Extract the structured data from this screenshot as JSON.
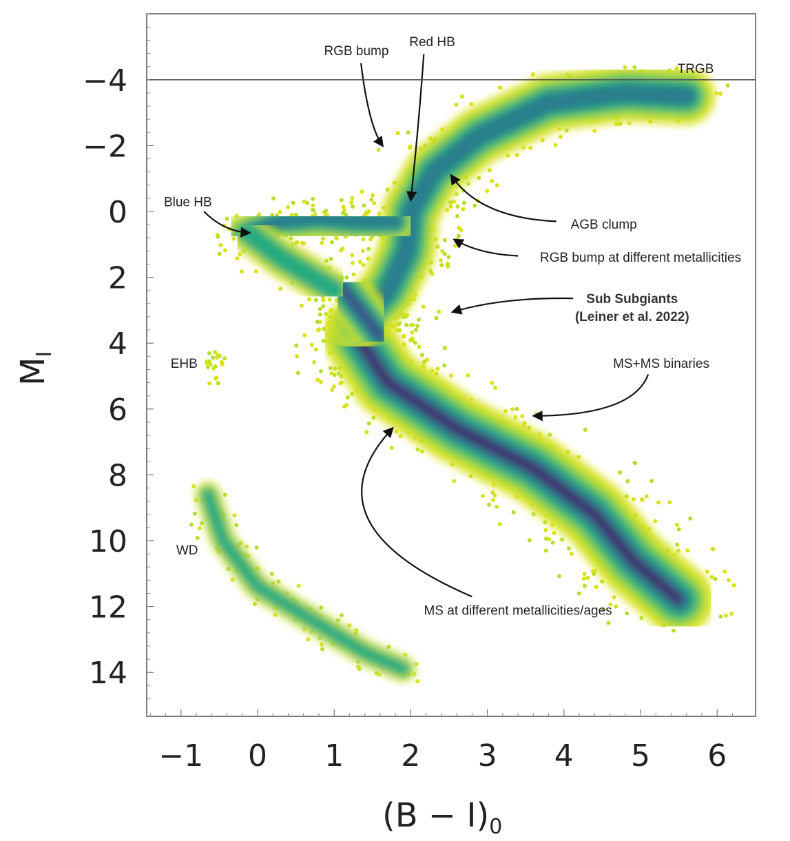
{
  "chart_data": {
    "type": "heatmap",
    "title": "",
    "xlabel": "(B − I)",
    "xlabel_sub": "0",
    "ylabel": "M",
    "ylabel_sub": "I",
    "xlim": [
      -1.45,
      6.5
    ],
    "ylim": [
      15.2,
      -6.1
    ],
    "y_inverted": true,
    "xticks": [
      -1,
      0,
      1,
      2,
      3,
      4,
      5,
      6
    ],
    "xtick_labels": [
      "−1",
      "0",
      "1",
      "2",
      "3",
      "4",
      "5",
      "6"
    ],
    "yticks": [
      -4,
      -2,
      0,
      2,
      4,
      6,
      8,
      10,
      12,
      14
    ],
    "ytick_labels": [
      "−4",
      "−2",
      "0",
      "2",
      "4",
      "6",
      "8",
      "10",
      "12",
      "14"
    ],
    "grid": false,
    "colormap": [
      "#d8e219",
      "#7ad151",
      "#22a884",
      "#2a788e",
      "#414487",
      "#440154"
    ],
    "reference_lines": [
      {
        "y": -4,
        "label": "TRGB",
        "label_x": 5.72,
        "label_y": -4.33
      }
    ],
    "branches": [
      {
        "name": "main-sequence",
        "width": 0.55,
        "density": 1.0,
        "points": [
          [
            1.3,
            3.8
          ],
          [
            1.7,
            5.2
          ],
          [
            2.6,
            6.6
          ],
          [
            3.6,
            7.8
          ],
          [
            4.4,
            9.2
          ],
          [
            4.9,
            10.6
          ],
          [
            5.5,
            11.8
          ]
        ]
      },
      {
        "name": "red-giant-branch",
        "width": 0.45,
        "density": 0.6,
        "points": [
          [
            1.3,
            3.4
          ],
          [
            1.7,
            2.4
          ],
          [
            1.95,
            1.2
          ],
          [
            2.0,
            0.0
          ],
          [
            2.3,
            -1.2
          ],
          [
            2.9,
            -2.3
          ],
          [
            3.8,
            -3.3
          ],
          [
            4.8,
            -3.6
          ],
          [
            5.6,
            -3.5
          ]
        ]
      },
      {
        "name": "subgiant-branch",
        "width": 0.4,
        "density": 0.7,
        "points": [
          [
            1.1,
            2.3
          ],
          [
            1.4,
            3.2
          ],
          [
            1.6,
            3.8
          ]
        ]
      },
      {
        "name": "horizontal-branch",
        "width": 0.35,
        "density": 0.45,
        "points": [
          [
            -0.15,
            0.7
          ],
          [
            0.3,
            0.3
          ],
          [
            0.8,
            0.2
          ],
          [
            1.3,
            0.3
          ],
          [
            1.8,
            0.3
          ]
        ]
      },
      {
        "name": "blue-hb-tail",
        "width": 0.3,
        "density": 0.35,
        "points": [
          [
            -0.15,
            0.6
          ],
          [
            0.3,
            1.4
          ],
          [
            1.0,
            2.4
          ]
        ]
      },
      {
        "name": "white-dwarfs",
        "width": 0.2,
        "density": 0.4,
        "points": [
          [
            -0.65,
            8.6
          ],
          [
            -0.45,
            10.0
          ],
          [
            0.0,
            11.4
          ],
          [
            0.7,
            12.4
          ],
          [
            1.4,
            13.4
          ],
          [
            1.9,
            13.9
          ]
        ]
      },
      {
        "name": "extreme-hb",
        "width": 0.08,
        "density": 0.3,
        "points": [
          [
            -0.55,
            4.2
          ],
          [
            -0.55,
            5.3
          ]
        ]
      }
    ],
    "annotations": [
      {
        "text": "RGB bump",
        "x": 1.29,
        "y": -4.9,
        "arrow_from": [
          1.35,
          -4.5
        ],
        "arrow_ctrl": [
          1.45,
          -2.6
        ],
        "arrow_to": [
          1.63,
          -2.0
        ]
      },
      {
        "text": "Red HB",
        "x": 2.28,
        "y": -5.17,
        "arrow_from": [
          2.17,
          -4.78
        ],
        "arrow_ctrl": [
          2.1,
          -2.5
        ],
        "arrow_to": [
          2.0,
          -0.35
        ]
      },
      {
        "text": "Blue HB",
        "x": -0.91,
        "y": -0.3,
        "arrow_from": [
          -0.7,
          0.0
        ],
        "arrow_ctrl": [
          -0.45,
          0.6
        ],
        "arrow_to": [
          -0.11,
          0.65
        ]
      },
      {
        "text": "AGB clump",
        "x": 4.52,
        "y": 0.38,
        "arrow_from": [
          3.9,
          0.3
        ],
        "arrow_ctrl": [
          2.9,
          0.2
        ],
        "arrow_to": [
          2.53,
          -1.09
        ]
      },
      {
        "text": "RGB bump at different metallicities",
        "x": 5.0,
        "y": 1.38,
        "arrow_from": [
          3.4,
          1.35
        ],
        "arrow_ctrl": [
          2.9,
          1.3
        ],
        "arrow_to": [
          2.57,
          0.86
        ]
      },
      {
        "text": "Sub Subgiants",
        "text2": "(Leiner et al. 2022)",
        "bold": true,
        "x": 4.89,
        "y": 2.64,
        "arrow_from": [
          4.12,
          2.64
        ],
        "arrow_ctrl": [
          3.2,
          2.6
        ],
        "arrow_to": [
          2.55,
          3.05
        ]
      },
      {
        "text": "MS+MS binaries",
        "x": 5.27,
        "y": 4.6,
        "arrow_from": [
          5.1,
          4.95
        ],
        "arrow_ctrl": [
          4.9,
          6.2
        ],
        "arrow_to": [
          3.61,
          6.21
        ]
      },
      {
        "text": "MS at different metallicities/ages",
        "x": 3.4,
        "y": 12.1,
        "arrow_from": [
          2.8,
          11.7
        ],
        "arrow_ctrl": [
          0.6,
          9.5
        ],
        "arrow_to": [
          1.76,
          6.59
        ]
      },
      {
        "text": "EHB",
        "x": -0.96,
        "y": 4.6
      },
      {
        "text": "WD",
        "x": -0.92,
        "y": 10.27
      }
    ]
  }
}
